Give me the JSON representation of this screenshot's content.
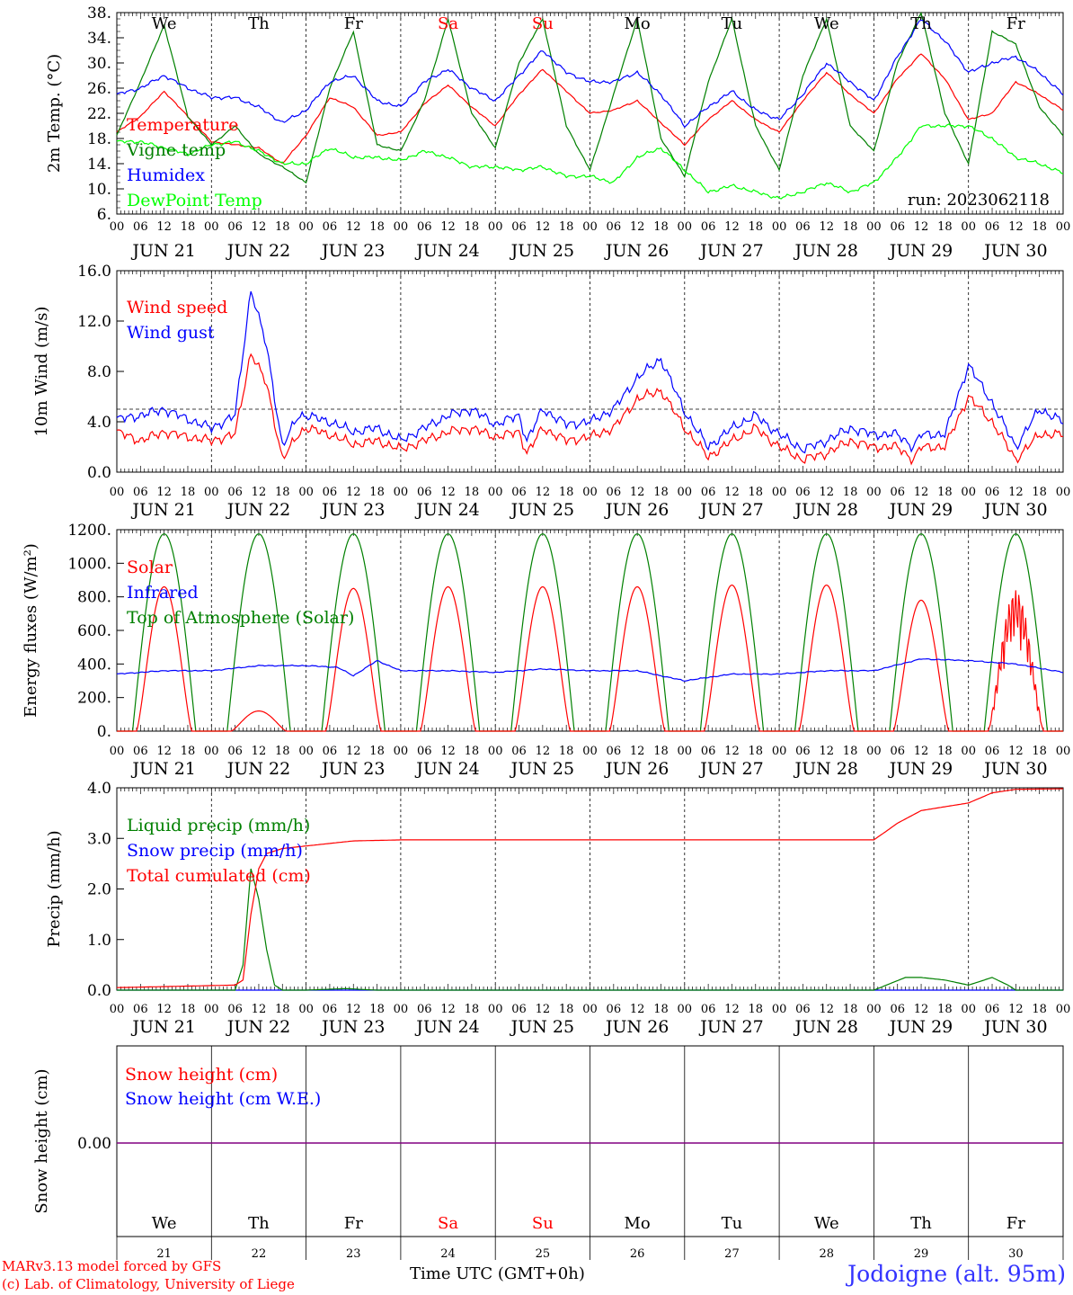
{
  "meta": {
    "run_label": "run: 2023062118",
    "x_title": "Time UTC (GMT+0h)",
    "credit_line1": "MARv3.13 model forced by GFS",
    "credit_line2": "(c) Lab. of Climatology, University of Liege",
    "station": "Jodoigne (alt. 95m)"
  },
  "colors": {
    "red": "#ff0000",
    "blue": "#0000ff",
    "green": "#008000",
    "lightgreen": "#00ff00",
    "purple": "#800080"
  },
  "chart_data": [
    {
      "type": "line",
      "ylabel": "2m Temp. (°C)",
      "ylim": [
        6,
        38
      ],
      "yticks": [
        "6.",
        "10.",
        "14.",
        "18.",
        "22.",
        "26.",
        "30.",
        "34.",
        "38."
      ],
      "grid": "vertical dashed lines at midnight",
      "days": [
        "JUN 21",
        "JUN 22",
        "JUN 23",
        "JUN 24",
        "JUN 25",
        "JUN 26",
        "JUN 27",
        "JUN 28",
        "JUN 29",
        "JUN 30"
      ],
      "weekdays": [
        "We",
        "Th",
        "Fr",
        "Sa",
        "Su",
        "Mo",
        "Tu",
        "We",
        "Th",
        "Fr"
      ],
      "weekday_colors": [
        "black",
        "black",
        "black",
        "red",
        "red",
        "black",
        "black",
        "black",
        "black",
        "black"
      ],
      "hour_labels": [
        "00",
        "06",
        "12",
        "18"
      ],
      "x_unit": "hours since JUN 21 00 UTC",
      "series": [
        {
          "name": "Temperature",
          "color": "red",
          "x": [
            0,
            6,
            12,
            18,
            24,
            30,
            36,
            42,
            48,
            54,
            60,
            66,
            72,
            78,
            84,
            90,
            96,
            102,
            108,
            114,
            120,
            126,
            132,
            138,
            144,
            150,
            156,
            162,
            168,
            174,
            180,
            186,
            192,
            198,
            204,
            210,
            216,
            222,
            228,
            234,
            240
          ],
          "values": [
            19,
            21.5,
            25.5,
            21.5,
            17.5,
            17,
            16.5,
            14,
            18.5,
            24.5,
            23,
            18.5,
            19,
            23.5,
            26.5,
            23,
            20,
            25,
            29,
            25.5,
            22,
            22.5,
            24,
            20.5,
            17,
            21,
            24,
            21,
            19,
            24,
            28.5,
            25,
            22,
            27.5,
            31.5,
            27.5,
            21,
            22,
            27,
            25,
            22.5
          ]
        },
        {
          "name": "Vigne temp",
          "color": "green",
          "x": [
            0,
            6,
            12,
            18,
            24,
            30,
            36,
            42,
            48,
            54,
            60,
            66,
            72,
            78,
            84,
            90,
            96,
            102,
            108,
            114,
            120,
            126,
            132,
            138,
            144,
            150,
            156,
            162,
            168,
            174,
            180,
            186,
            192,
            198,
            204,
            210,
            216,
            222,
            228,
            234,
            240
          ],
          "values": [
            18.5,
            27,
            36,
            21.5,
            17,
            20,
            15.5,
            13.5,
            11,
            26,
            35,
            17,
            16,
            24,
            37,
            22,
            16.5,
            30,
            37,
            20,
            13,
            25,
            37,
            18,
            12,
            27,
            37,
            20,
            13,
            28,
            37,
            20,
            16,
            30,
            38,
            22,
            14,
            35,
            33,
            23,
            18.5
          ]
        },
        {
          "name": "Humidex",
          "color": "blue",
          "x": [
            0,
            6,
            12,
            18,
            24,
            30,
            36,
            42,
            48,
            54,
            60,
            66,
            72,
            78,
            84,
            90,
            96,
            102,
            108,
            114,
            120,
            126,
            132,
            138,
            144,
            150,
            156,
            162,
            168,
            174,
            180,
            186,
            192,
            198,
            204,
            210,
            216,
            222,
            228,
            234,
            240
          ],
          "values": [
            25,
            26,
            28,
            26,
            24.5,
            24.5,
            23,
            20.5,
            22.5,
            27,
            28,
            24,
            23,
            27,
            29,
            26,
            24,
            28,
            32,
            28.5,
            27,
            27,
            28.5,
            25,
            20,
            23,
            25.5,
            22.5,
            21,
            25,
            30,
            27,
            24,
            31,
            37,
            33.5,
            28.5,
            30,
            31,
            28.5,
            25
          ]
        },
        {
          "name": "DewPoint Temp",
          "color": "lightgreen",
          "x": [
            0,
            6,
            12,
            18,
            24,
            30,
            36,
            42,
            48,
            54,
            60,
            66,
            72,
            78,
            84,
            90,
            96,
            102,
            108,
            114,
            120,
            126,
            132,
            138,
            144,
            150,
            156,
            162,
            168,
            174,
            180,
            186,
            192,
            198,
            204,
            210,
            216,
            222,
            228,
            234,
            240
          ],
          "values": [
            17.5,
            17.5,
            16.5,
            15.5,
            17,
            17.5,
            16,
            14,
            14,
            16.5,
            15,
            15,
            14.5,
            16,
            15,
            13.5,
            13.5,
            13,
            13.5,
            12,
            12,
            11,
            15,
            16.5,
            13,
            9.5,
            10.5,
            9.5,
            8.5,
            9.5,
            11,
            9.5,
            11,
            15,
            20,
            20,
            20,
            18,
            15,
            14,
            12.5
          ]
        }
      ]
    },
    {
      "type": "line",
      "ylabel": "10m Wind (m/s)",
      "ylim": [
        0,
        16
      ],
      "yticks": [
        "0.0",
        "4.0",
        "8.0",
        "12.0",
        "16.0"
      ],
      "reference_line": 5,
      "grid": "vertical dashed lines at midnight",
      "days": [
        "JUN 21",
        "JUN 22",
        "JUN 23",
        "JUN 24",
        "JUN 25",
        "JUN 26",
        "JUN 27",
        "JUN 28",
        "JUN 29",
        "JUN 30"
      ],
      "hour_labels": [
        "00",
        "06",
        "12",
        "18"
      ],
      "x_unit": "hours since JUN 21 00 UTC",
      "series": [
        {
          "name": "Wind speed",
          "color": "red",
          "x": [
            0,
            6,
            12,
            18,
            24,
            30,
            34,
            38,
            42,
            46,
            48,
            54,
            60,
            66,
            72,
            78,
            84,
            90,
            96,
            102,
            104,
            108,
            114,
            120,
            126,
            132,
            138,
            144,
            150,
            156,
            162,
            168,
            174,
            180,
            186,
            192,
            198,
            202,
            204,
            210,
            216,
            222,
            228,
            234,
            240
          ],
          "values": [
            3.2,
            2.5,
            3.2,
            2.8,
            2.5,
            3,
            9.5,
            7,
            1,
            3,
            3.5,
            3,
            2.2,
            2.5,
            1.8,
            2.5,
            3.2,
            3.5,
            2.8,
            3.2,
            1.5,
            3.5,
            2.5,
            2.8,
            3.5,
            5.8,
            6.5,
            3.5,
            1.2,
            2.5,
            3.5,
            2,
            1,
            1.5,
            2.5,
            2,
            2,
            1,
            2,
            2,
            6,
            4,
            1,
            3,
            3
          ]
        },
        {
          "name": "Wind gust",
          "color": "blue",
          "x": [
            0,
            6,
            12,
            18,
            24,
            30,
            34,
            38,
            42,
            46,
            48,
            54,
            60,
            66,
            72,
            78,
            84,
            90,
            96,
            102,
            104,
            108,
            114,
            120,
            126,
            132,
            138,
            144,
            150,
            156,
            162,
            168,
            174,
            180,
            186,
            192,
            198,
            202,
            204,
            210,
            216,
            222,
            228,
            234,
            240
          ],
          "values": [
            4.2,
            4.5,
            5,
            4.2,
            3.5,
            4.5,
            14.5,
            10,
            2,
            4.5,
            4.5,
            4,
            3.2,
            3.5,
            2.5,
            3.5,
            4.5,
            5,
            3.8,
            4.5,
            2.5,
            5,
            3.8,
            4,
            5,
            7.5,
            9,
            4.8,
            2,
            3.5,
            4.5,
            3,
            1.8,
            2.5,
            3.5,
            3,
            3,
            2,
            3,
            3,
            8.5,
            5.5,
            2,
            5,
            4
          ]
        }
      ]
    },
    {
      "type": "line",
      "ylabel": "Energy fluxes (W/m²)",
      "ylim": [
        0,
        1200
      ],
      "yticks": [
        "0.",
        "200.",
        "400.",
        "600.",
        "800.",
        "1000.",
        "1200."
      ],
      "grid": "vertical dashed lines at midnight",
      "days": [
        "JUN 21",
        "JUN 22",
        "JUN 23",
        "JUN 24",
        "JUN 25",
        "JUN 26",
        "JUN 27",
        "JUN 28",
        "JUN 29",
        "JUN 30"
      ],
      "hour_labels": [
        "00",
        "06",
        "12",
        "18"
      ],
      "x_unit": "hours since JUN 21 00 UTC",
      "solar_peaks": [
        860,
        120,
        850,
        860,
        860,
        860,
        870,
        870,
        780,
        840
      ],
      "toa_peak": 1175,
      "series": [
        {
          "name": "Solar",
          "color": "red"
        },
        {
          "name": "Infrared",
          "color": "blue",
          "x": [
            0,
            12,
            24,
            36,
            48,
            56,
            60,
            66,
            72,
            84,
            96,
            108,
            120,
            132,
            144,
            156,
            168,
            180,
            192,
            204,
            216,
            228,
            240
          ],
          "values": [
            340,
            360,
            360,
            390,
            390,
            380,
            330,
            420,
            360,
            360,
            350,
            370,
            360,
            360,
            300,
            340,
            340,
            360,
            360,
            430,
            420,
            400,
            350
          ]
        },
        {
          "name": "Top of Atmosphere (Solar)",
          "color": "green"
        }
      ]
    },
    {
      "type": "line",
      "ylabel": "Precip (mm/h)",
      "ylim": [
        0,
        4
      ],
      "yticks": [
        "0.0",
        "1.0",
        "2.0",
        "3.0",
        "4.0"
      ],
      "grid": "vertical dashed lines at midnight",
      "days": [
        "JUN 21",
        "JUN 22",
        "JUN 23",
        "JUN 24",
        "JUN 25",
        "JUN 26",
        "JUN 27",
        "JUN 28",
        "JUN 29",
        "JUN 30"
      ],
      "hour_labels": [
        "00",
        "06",
        "12",
        "18"
      ],
      "x_unit": "hours since JUN 21 00 UTC",
      "series": [
        {
          "name": "Liquid precip (mm/h)",
          "color": "green",
          "x": [
            0,
            30,
            32,
            34,
            36,
            38,
            40,
            42,
            48,
            58,
            66,
            72,
            192,
            200,
            204,
            210,
            216,
            220,
            222,
            226,
            228,
            240
          ],
          "values": [
            0,
            0,
            0.5,
            2.4,
            1.8,
            0.8,
            0.1,
            0,
            0,
            0.03,
            0,
            0,
            0,
            0.25,
            0.25,
            0.2,
            0.1,
            0.2,
            0.25,
            0.1,
            0,
            0
          ]
        },
        {
          "name": "Snow precip (mm/h)",
          "color": "blue",
          "x": [
            0,
            240
          ],
          "values": [
            0,
            0
          ]
        },
        {
          "name": "Total cumulated (cm)",
          "color": "red",
          "x": [
            0,
            30,
            32,
            34,
            36,
            38,
            42,
            48,
            60,
            72,
            192,
            198,
            204,
            216,
            222,
            228,
            240
          ],
          "values": [
            0.05,
            0.1,
            0.2,
            1.5,
            2.4,
            2.7,
            2.8,
            2.85,
            2.95,
            2.97,
            2.97,
            3.3,
            3.55,
            3.7,
            3.9,
            3.97,
            3.98
          ]
        }
      ]
    },
    {
      "type": "line",
      "ylabel": "Snow height (cm)",
      "yticks": [
        "0.00"
      ],
      "grid": "vertical solid lines at midnight",
      "day_numbers": [
        "21",
        "22",
        "23",
        "24",
        "25",
        "26",
        "27",
        "28",
        "29",
        "30"
      ],
      "weekdays": [
        "We",
        "Th",
        "Fr",
        "Sa",
        "Su",
        "Mo",
        "Tu",
        "We",
        "Th",
        "Fr"
      ],
      "series": [
        {
          "name": "Snow height (cm)",
          "color": "red",
          "x": [
            0,
            240
          ],
          "values": [
            0,
            0
          ]
        },
        {
          "name": "Snow height (cm W.E.)",
          "color": "blue",
          "x": [
            0,
            240
          ],
          "values": [
            0,
            0
          ]
        }
      ]
    }
  ]
}
